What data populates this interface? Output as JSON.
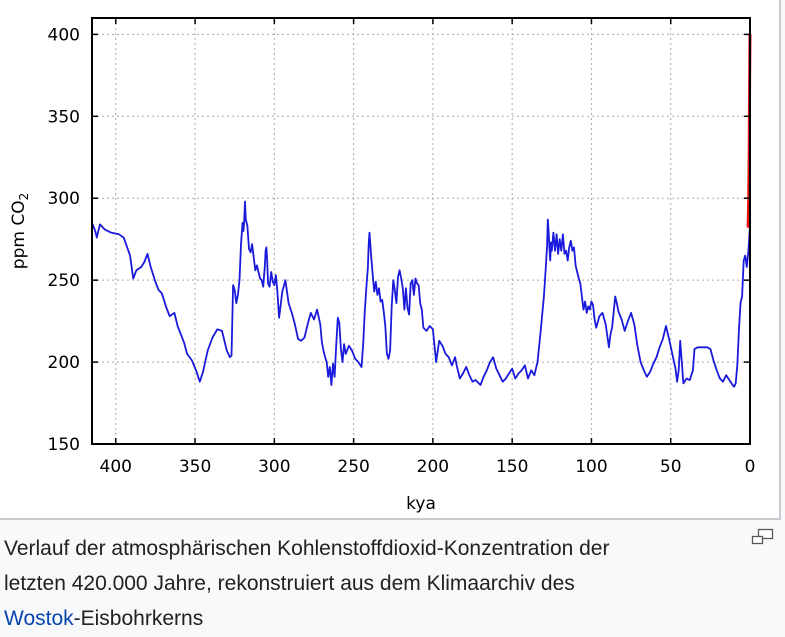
{
  "caption": {
    "line1": "Verlauf der atmosphärischen Kohlenstoffdioxid-Konzentration der",
    "line2": "letzten 420.000 Jahre, rekonstruiert aus dem Klimaarchiv des",
    "link_text": "Wostok",
    "line3_rest": "-Eisbohrkerns",
    "enlarge_icon": "enlarge-icon"
  },
  "colors": {
    "vostok_line": "#1a1adc",
    "modern_line": "#ee1111",
    "grid": "#aaaaaa",
    "link": "#0645ad"
  },
  "chart_data": {
    "type": "line",
    "xlabel": "kya",
    "ylabel_main": "ppm CO",
    "ylabel_sub": "2",
    "xlim": [
      415,
      0
    ],
    "ylim": [
      150,
      410
    ],
    "x_reversed": true,
    "grid": true,
    "xticks": [
      400,
      350,
      300,
      250,
      200,
      150,
      100,
      50,
      0
    ],
    "yticks": [
      150,
      200,
      250,
      300,
      350,
      400
    ],
    "series": [
      {
        "color": "#1a1adc",
        "points": [
          [
            415,
            285
          ],
          [
            413,
            280
          ],
          [
            412,
            276
          ],
          [
            410,
            284
          ],
          [
            407,
            281
          ],
          [
            403,
            279
          ],
          [
            398,
            278
          ],
          [
            395,
            276
          ],
          [
            391,
            265
          ],
          [
            389,
            251
          ],
          [
            387,
            256
          ],
          [
            384,
            258
          ],
          [
            382,
            261
          ],
          [
            380,
            266
          ],
          [
            378,
            258
          ],
          [
            375,
            249
          ],
          [
            373,
            244
          ],
          [
            371,
            242
          ],
          [
            368,
            233
          ],
          [
            366,
            228
          ],
          [
            363,
            230
          ],
          [
            361,
            222
          ],
          [
            357,
            212
          ],
          [
            355,
            205
          ],
          [
            352,
            201
          ],
          [
            349,
            194
          ],
          [
            347,
            188
          ],
          [
            345,
            194
          ],
          [
            342,
            207
          ],
          [
            339,
            215
          ],
          [
            336,
            220
          ],
          [
            333,
            219
          ],
          [
            330,
            207
          ],
          [
            328,
            203
          ],
          [
            327,
            204
          ],
          [
            326,
            247
          ],
          [
            325,
            244
          ],
          [
            324,
            236
          ],
          [
            323,
            241
          ],
          [
            322,
            250
          ],
          [
            321,
            272
          ],
          [
            320,
            285
          ],
          [
            319.5,
            280
          ],
          [
            319,
            286
          ],
          [
            318.5,
            298
          ],
          [
            318,
            287
          ],
          [
            317,
            283
          ],
          [
            316,
            269
          ],
          [
            315,
            267
          ],
          [
            314,
            272
          ],
          [
            313,
            264
          ],
          [
            312,
            256
          ],
          [
            311,
            259
          ],
          [
            309,
            251
          ],
          [
            308,
            250
          ],
          [
            307,
            246
          ],
          [
            306,
            258
          ],
          [
            305.5,
            268
          ],
          [
            305,
            270
          ],
          [
            304.5,
            262
          ],
          [
            304,
            248
          ],
          [
            303,
            246
          ],
          [
            302,
            255
          ],
          [
            301,
            249
          ],
          [
            300,
            247
          ],
          [
            299,
            253
          ],
          [
            298,
            242
          ],
          [
            297,
            227
          ],
          [
            295,
            243
          ],
          [
            293,
            250
          ],
          [
            291,
            236
          ],
          [
            289,
            230
          ],
          [
            287,
            223
          ],
          [
            285,
            214
          ],
          [
            283,
            213
          ],
          [
            281,
            215
          ],
          [
            279,
            223
          ],
          [
            277,
            230
          ],
          [
            275,
            226
          ],
          [
            273,
            232
          ],
          [
            271,
            223
          ],
          [
            270,
            212
          ],
          [
            269,
            207
          ],
          [
            268,
            203
          ],
          [
            267,
            200
          ],
          [
            266,
            191
          ],
          [
            265,
            197
          ],
          [
            264,
            186
          ],
          [
            263,
            199
          ],
          [
            262,
            191
          ],
          [
            261,
            210
          ],
          [
            260,
            227
          ],
          [
            259,
            224
          ],
          [
            258,
            208
          ],
          [
            257,
            200
          ],
          [
            256,
            211
          ],
          [
            255,
            205
          ],
          [
            253,
            210
          ],
          [
            251,
            207
          ],
          [
            249,
            202
          ],
          [
            247,
            200
          ],
          [
            245,
            197
          ],
          [
            244,
            210
          ],
          [
            243,
            230
          ],
          [
            242,
            245
          ],
          [
            241,
            258
          ],
          [
            240.5,
            272
          ],
          [
            240,
            279
          ],
          [
            239,
            265
          ],
          [
            238,
            254
          ],
          [
            237,
            243
          ],
          [
            236,
            249
          ],
          [
            235,
            241
          ],
          [
            234,
            245
          ],
          [
            233,
            237
          ],
          [
            232,
            238
          ],
          [
            231,
            231
          ],
          [
            230,
            222
          ],
          [
            229,
            205
          ],
          [
            228,
            202
          ],
          [
            227,
            207
          ],
          [
            226,
            234
          ],
          [
            225,
            250
          ],
          [
            224,
            244
          ],
          [
            223,
            236
          ],
          [
            222,
            252
          ],
          [
            221,
            256
          ],
          [
            220,
            251
          ],
          [
            219,
            245
          ],
          [
            218,
            232
          ],
          [
            217,
            245
          ],
          [
            216,
            233
          ],
          [
            215,
            229
          ],
          [
            214,
            248
          ],
          [
            213,
            250
          ],
          [
            212,
            241
          ],
          [
            211,
            251
          ],
          [
            210,
            248
          ],
          [
            209,
            247
          ],
          [
            208,
            236
          ],
          [
            207,
            232
          ],
          [
            206,
            221
          ],
          [
            204,
            219
          ],
          [
            202,
            222
          ],
          [
            200,
            220
          ],
          [
            198,
            200
          ],
          [
            196,
            213
          ],
          [
            194,
            210
          ],
          [
            192,
            205
          ],
          [
            190,
            203
          ],
          [
            188,
            198
          ],
          [
            186,
            203
          ],
          [
            185,
            198
          ],
          [
            183,
            190
          ],
          [
            181,
            193
          ],
          [
            179,
            197
          ],
          [
            177,
            192
          ],
          [
            175,
            188
          ],
          [
            173,
            189
          ],
          [
            170,
            186
          ],
          [
            168,
            191
          ],
          [
            166,
            195
          ],
          [
            164,
            200
          ],
          [
            162,
            203
          ],
          [
            160,
            196
          ],
          [
            158,
            192
          ],
          [
            156,
            188
          ],
          [
            154,
            190
          ],
          [
            152,
            193
          ],
          [
            150,
            196
          ],
          [
            148,
            190
          ],
          [
            146,
            193
          ],
          [
            144,
            195
          ],
          [
            142,
            198
          ],
          [
            140,
            190
          ],
          [
            138,
            195
          ],
          [
            136,
            192
          ],
          [
            134,
            200
          ],
          [
            132,
            219
          ],
          [
            130,
            240
          ],
          [
            129,
            255
          ],
          [
            128,
            271
          ],
          [
            127.5,
            287
          ],
          [
            127,
            280
          ],
          [
            126.5,
            270
          ],
          [
            126,
            262
          ],
          [
            125.5,
            273
          ],
          [
            125,
            268
          ],
          [
            124,
            279
          ],
          [
            123,
            268
          ],
          [
            122,
            278
          ],
          [
            121,
            266
          ],
          [
            120,
            275
          ],
          [
            119,
            268
          ],
          [
            118,
            278
          ],
          [
            117,
            266
          ],
          [
            116,
            268
          ],
          [
            115,
            262
          ],
          [
            114,
            270
          ],
          [
            113,
            274
          ],
          [
            112,
            268
          ],
          [
            111,
            270
          ],
          [
            110,
            259
          ],
          [
            109,
            255
          ],
          [
            108,
            251
          ],
          [
            107,
            248
          ],
          [
            106,
            240
          ],
          [
            105,
            232
          ],
          [
            104,
            237
          ],
          [
            103,
            230
          ],
          [
            102,
            234
          ],
          [
            101,
            232
          ],
          [
            100,
            237
          ],
          [
            99,
            235
          ],
          [
            98,
            226
          ],
          [
            97,
            221
          ],
          [
            95,
            228
          ],
          [
            93,
            230
          ],
          [
            91,
            223
          ],
          [
            89,
            209
          ],
          [
            88,
            217
          ],
          [
            87,
            221
          ],
          [
            86,
            230
          ],
          [
            85,
            240
          ],
          [
            84,
            236
          ],
          [
            83,
            231
          ],
          [
            81,
            226
          ],
          [
            79,
            219
          ],
          [
            77,
            225
          ],
          [
            75,
            230
          ],
          [
            73,
            223
          ],
          [
            71,
            210
          ],
          [
            69,
            200
          ],
          [
            67,
            195
          ],
          [
            65,
            191
          ],
          [
            63,
            194
          ],
          [
            61,
            199
          ],
          [
            59,
            203
          ],
          [
            57,
            209
          ],
          [
            55,
            214
          ],
          [
            53,
            222
          ],
          [
            51,
            214
          ],
          [
            49,
            205
          ],
          [
            47,
            196
          ],
          [
            46,
            188
          ],
          [
            45,
            195
          ],
          [
            44,
            213
          ],
          [
            43,
            200
          ],
          [
            42,
            187
          ],
          [
            40,
            190
          ],
          [
            38,
            189
          ],
          [
            36,
            195
          ],
          [
            35,
            208
          ],
          [
            33,
            209
          ],
          [
            30,
            209
          ],
          [
            27,
            209
          ],
          [
            25,
            208
          ],
          [
            23,
            201
          ],
          [
            21,
            195
          ],
          [
            19,
            190
          ],
          [
            17,
            188
          ],
          [
            15,
            192
          ],
          [
            13,
            189
          ],
          [
            11,
            186
          ],
          [
            10,
            185
          ],
          [
            9,
            187
          ],
          [
            8,
            198
          ],
          [
            7,
            219
          ],
          [
            6,
            236
          ],
          [
            5,
            240
          ],
          [
            4,
            262
          ],
          [
            3,
            265
          ],
          [
            2,
            258
          ],
          [
            1,
            268
          ],
          [
            0.5,
            275
          ],
          [
            0,
            284
          ]
        ]
      },
      {
        "color": "#ee1111",
        "points": [
          [
            1.2,
            282
          ],
          [
            0.8,
            300
          ],
          [
            0.5,
            330
          ],
          [
            0.25,
            370
          ],
          [
            0,
            400
          ]
        ]
      }
    ]
  }
}
